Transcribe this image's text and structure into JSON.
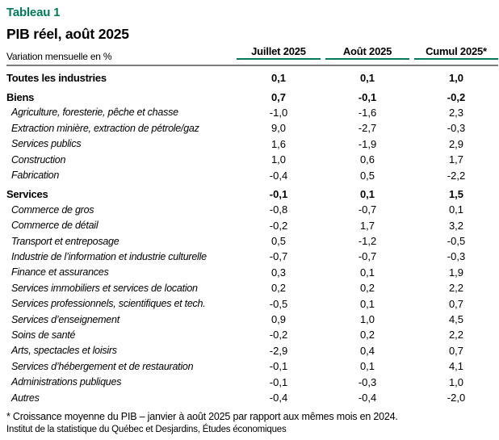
{
  "colors": {
    "accent_green": "#00795c",
    "rule_gray": "#7b7b7b"
  },
  "title": "Tableau 1",
  "subtitle": "PIB réel, août 2025",
  "table": {
    "row_axis_label": "Variation mensuelle en %",
    "columns": [
      "Juillet 2025",
      "Août 2025",
      "Cumul 2025*"
    ],
    "rows": [
      {
        "label": "Toutes les industries",
        "level": "group",
        "spaced": false,
        "values": [
          "0,1",
          "0,1",
          "1,0"
        ]
      },
      {
        "label": "Biens",
        "level": "group",
        "spaced": true,
        "values": [
          "0,7",
          "-0,1",
          "-0,2"
        ]
      },
      {
        "label": "Agriculture, foresterie, pêche et chasse",
        "level": "sub",
        "spaced": false,
        "values": [
          "-1,0",
          "-1,6",
          "2,3"
        ]
      },
      {
        "label": "Extraction minière, extraction de pétrole/gaz",
        "level": "sub",
        "spaced": false,
        "values": [
          "9,0",
          "-2,7",
          "-0,3"
        ]
      },
      {
        "label": "Services publics",
        "level": "sub",
        "spaced": false,
        "values": [
          "1,6",
          "-1,9",
          "2,9"
        ]
      },
      {
        "label": "Construction",
        "level": "sub",
        "spaced": false,
        "values": [
          "1,0",
          "0,6",
          "1,7"
        ]
      },
      {
        "label": "Fabrication",
        "level": "sub",
        "spaced": false,
        "values": [
          "-0,4",
          "0,5",
          "-2,2"
        ]
      },
      {
        "label": "Services",
        "level": "group",
        "spaced": true,
        "values": [
          "-0,1",
          "0,1",
          "1,5"
        ]
      },
      {
        "label": "Commerce de gros",
        "level": "sub",
        "spaced": false,
        "values": [
          "-0,8",
          "-0,7",
          "0,1"
        ]
      },
      {
        "label": "Commerce de détail",
        "level": "sub",
        "spaced": false,
        "values": [
          "-0,2",
          "1,7",
          "3,2"
        ]
      },
      {
        "label": "Transport et entreposage",
        "level": "sub",
        "spaced": false,
        "values": [
          "0,5",
          "-1,2",
          "-0,5"
        ]
      },
      {
        "label": "Industrie de l’information et industrie culturelle",
        "level": "sub",
        "spaced": false,
        "values": [
          "-0,7",
          "-0,7",
          "-0,3"
        ]
      },
      {
        "label": "Finance et assurances",
        "level": "sub",
        "spaced": false,
        "values": [
          "0,3",
          "0,1",
          "1,9"
        ]
      },
      {
        "label": "Services immobiliers et services de location",
        "level": "sub",
        "spaced": false,
        "values": [
          "0,2",
          "0,2",
          "2,2"
        ]
      },
      {
        "label": "Services professionnels, scientifiques et tech.",
        "level": "sub",
        "spaced": false,
        "values": [
          "-0,5",
          "0,1",
          "0,7"
        ]
      },
      {
        "label": "Services d’enseignement",
        "level": "sub",
        "spaced": false,
        "values": [
          "0,9",
          "1,0",
          "4,5"
        ]
      },
      {
        "label": "Soins de santé",
        "level": "sub",
        "spaced": false,
        "values": [
          "-0,2",
          "0,2",
          "2,2"
        ]
      },
      {
        "label": "Arts, spectacles et loisirs",
        "level": "sub",
        "spaced": false,
        "values": [
          "-2,9",
          "0,4",
          "0,7"
        ]
      },
      {
        "label": "Services d’hébergement et de restauration",
        "level": "sub",
        "spaced": false,
        "values": [
          "-0,1",
          "0,1",
          "4,1"
        ]
      },
      {
        "label": "Administrations publiques",
        "level": "sub",
        "spaced": false,
        "values": [
          "-0,1",
          "-0,3",
          "1,0"
        ]
      },
      {
        "label": "Autres",
        "level": "sub",
        "spaced": false,
        "values": [
          "-0,4",
          "-0,4",
          "-2,0"
        ]
      }
    ]
  },
  "footnote": "* Croissance moyenne du PIB – janvier à août 2025 par rapport aux mêmes mois en 2024.",
  "source": "Institut de la statistique du Québec et Desjardins, Études économiques"
}
